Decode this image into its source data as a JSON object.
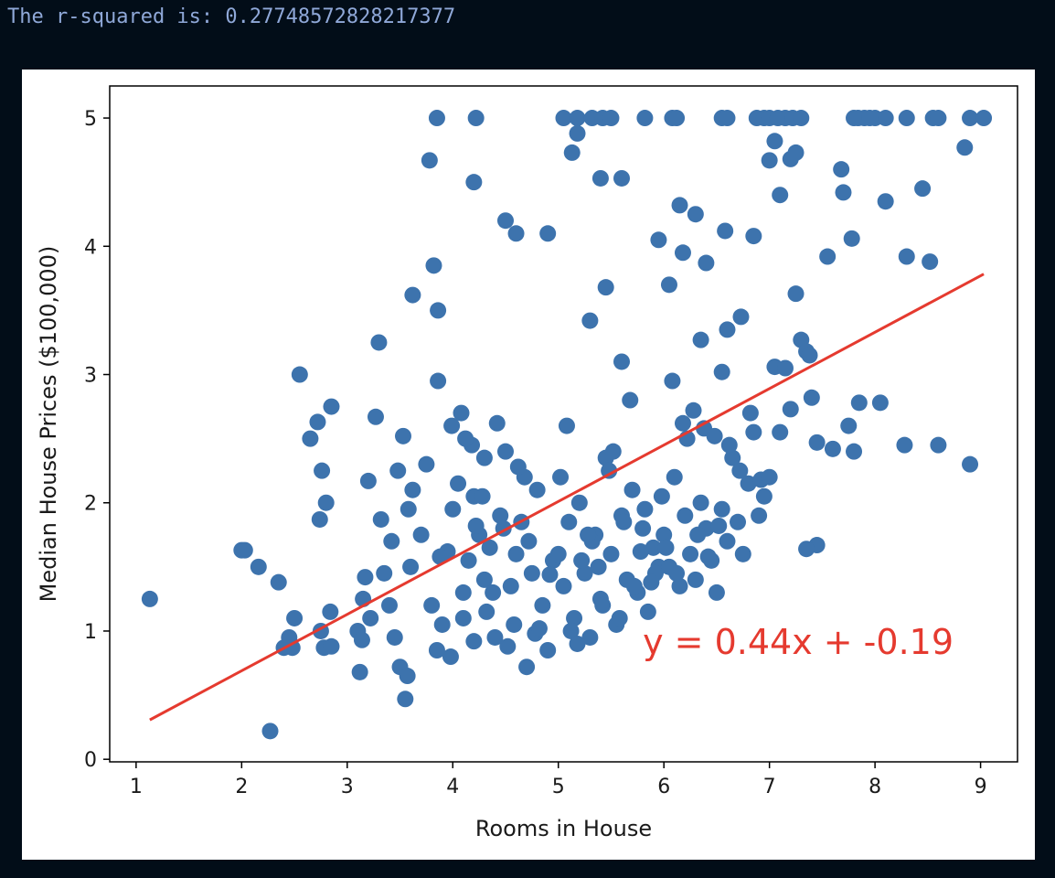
{
  "output": {
    "text": "The r-squared is: 0.27748572828217377"
  },
  "colors": {
    "background": "#020d18",
    "output_text": "#8fa8d8",
    "points": "#3d73ad",
    "regression": "#e53a2f"
  },
  "chart_data": {
    "type": "scatter",
    "title": "",
    "xlabel": "Rooms in House",
    "ylabel": "Median House Prices ($100,000)",
    "xlim": [
      0.75,
      9.35
    ],
    "ylim": [
      -0.02,
      5.25
    ],
    "xticks": [
      1,
      2,
      3,
      4,
      5,
      6,
      7,
      8,
      9
    ],
    "yticks": [
      0,
      1,
      2,
      3,
      4,
      5
    ],
    "grid": false,
    "legend": "none",
    "regression_line": {
      "slope": 0.44,
      "intercept": -0.19,
      "x_range": [
        1.13,
        9.03
      ]
    },
    "annotation": {
      "text": "y = 0.44x + -0.19",
      "x": 5.8,
      "y": 0.82
    },
    "series": [
      {
        "x": [
          1.13,
          2.0,
          2.03,
          2.16,
          2.35,
          2.27,
          2.4,
          2.45,
          2.5,
          2.48,
          2.55,
          2.65,
          2.72,
          2.74,
          2.76,
          2.8,
          2.84,
          2.85,
          2.75,
          2.78,
          2.85,
          3.1,
          3.12,
          3.15,
          3.2,
          3.27,
          3.3,
          3.32,
          3.35,
          3.4,
          3.45,
          3.5,
          3.55,
          3.6,
          3.62,
          3.7,
          3.75,
          3.8,
          3.85,
          3.9,
          3.95,
          3.57,
          3.53,
          3.58,
          3.48,
          3.42,
          3.22,
          3.14,
          3.17,
          3.86,
          3.99,
          4.05,
          4.1,
          4.15,
          4.2,
          4.25,
          4.3,
          4.35,
          4.4,
          4.45,
          4.5,
          4.55,
          4.6,
          4.65,
          4.7,
          4.75,
          4.8,
          4.85,
          4.9,
          4.95,
          4.0,
          4.1,
          4.2,
          4.3,
          4.08,
          4.18,
          4.28,
          4.38,
          4.48,
          4.58,
          4.68,
          4.78,
          3.88,
          3.98,
          4.12,
          4.22,
          4.32,
          4.42,
          4.52,
          4.62,
          4.72,
          4.82,
          4.92,
          5.0,
          5.05,
          5.1,
          5.15,
          5.2,
          5.25,
          5.3,
          5.35,
          5.4,
          5.45,
          5.5,
          5.55,
          5.6,
          5.65,
          5.7,
          5.75,
          5.8,
          5.85,
          5.9,
          5.95,
          5.02,
          5.12,
          5.22,
          5.32,
          5.42,
          5.52,
          5.62,
          5.72,
          5.82,
          5.92,
          5.08,
          5.18,
          5.28,
          5.38,
          5.48,
          5.58,
          5.68,
          5.78,
          5.88,
          5.98,
          6.0,
          6.05,
          6.1,
          6.15,
          6.2,
          6.25,
          6.3,
          6.35,
          6.4,
          6.45,
          6.5,
          6.55,
          6.6,
          6.65,
          6.7,
          6.75,
          6.8,
          6.85,
          6.9,
          6.95,
          6.02,
          6.12,
          6.22,
          6.32,
          6.42,
          6.52,
          6.62,
          6.72,
          6.82,
          6.92,
          6.08,
          6.18,
          6.28,
          6.38,
          6.48,
          3.85,
          4.22,
          5.05,
          5.18,
          5.32,
          5.42,
          5.5,
          5.82,
          6.08,
          6.12,
          6.55,
          6.6,
          6.88,
          6.95,
          7.0,
          7.08,
          7.15,
          7.22,
          7.3,
          7.9,
          8.0,
          8.1,
          8.3,
          8.55,
          8.6,
          8.9,
          9.03,
          7.8,
          7.84,
          7.95,
          3.78,
          4.2,
          5.13,
          5.18,
          5.4,
          5.6,
          6.15,
          6.3,
          6.58,
          7.0,
          7.05,
          7.2,
          7.25,
          7.1,
          7.68,
          7.7,
          7.78,
          8.1,
          8.45,
          8.85,
          3.62,
          3.82,
          3.86,
          4.5,
          4.6,
          4.9,
          5.3,
          5.45,
          5.95,
          6.05,
          6.18,
          6.4,
          6.6,
          6.73,
          6.85,
          6.55,
          6.35,
          5.6,
          7.0,
          7.1,
          7.2,
          7.3,
          7.35,
          7.4,
          7.45,
          7.6,
          7.75,
          7.85,
          8.05,
          8.28,
          8.6,
          8.9,
          7.05,
          7.15,
          7.25,
          7.55,
          7.8,
          8.52,
          8.3,
          7.38,
          7.45,
          7.35
        ],
        "y": [
          1.25,
          1.63,
          1.63,
          1.5,
          1.38,
          0.22,
          0.87,
          0.95,
          1.1,
          0.87,
          3.0,
          2.5,
          2.63,
          1.87,
          2.25,
          2.0,
          1.15,
          2.75,
          1.0,
          0.87,
          0.88,
          1.0,
          0.68,
          1.25,
          2.17,
          2.67,
          3.25,
          1.87,
          1.45,
          1.2,
          0.95,
          0.72,
          0.47,
          1.5,
          2.1,
          1.75,
          2.3,
          1.2,
          0.85,
          1.05,
          1.62,
          0.65,
          2.52,
          1.95,
          2.25,
          1.7,
          1.1,
          0.93,
          1.42,
          2.95,
          2.6,
          2.15,
          1.3,
          1.55,
          2.05,
          1.75,
          2.35,
          1.65,
          0.95,
          1.9,
          2.4,
          1.35,
          1.6,
          1.85,
          0.72,
          1.45,
          2.1,
          1.2,
          0.85,
          1.55,
          1.95,
          1.1,
          0.92,
          1.4,
          2.7,
          2.45,
          2.05,
          1.3,
          1.8,
          1.05,
          2.2,
          0.98,
          1.58,
          0.8,
          2.5,
          1.82,
          1.15,
          2.62,
          0.88,
          2.28,
          1.7,
          1.02,
          1.44,
          1.6,
          1.35,
          1.85,
          1.1,
          2.0,
          1.45,
          0.95,
          1.75,
          1.25,
          2.35,
          1.6,
          1.05,
          1.9,
          1.4,
          2.1,
          1.3,
          1.8,
          1.15,
          1.65,
          1.5,
          2.2,
          1.0,
          1.55,
          1.7,
          1.2,
          2.4,
          1.85,
          1.35,
          1.95,
          1.45,
          2.6,
          0.9,
          1.75,
          1.5,
          2.25,
          1.1,
          2.8,
          1.62,
          1.38,
          2.05,
          1.75,
          1.5,
          2.2,
          1.35,
          1.9,
          1.6,
          1.4,
          2.0,
          1.8,
          1.55,
          1.3,
          1.95,
          1.7,
          2.35,
          1.85,
          1.6,
          2.15,
          2.55,
          1.9,
          2.05,
          1.65,
          1.45,
          2.5,
          1.75,
          1.58,
          1.82,
          2.45,
          2.25,
          2.7,
          2.18,
          2.95,
          2.62,
          2.72,
          2.58,
          2.52,
          5.0,
          5.0,
          5.0,
          5.0,
          5.0,
          5.0,
          5.0,
          5.0,
          5.0,
          5.0,
          5.0,
          5.0,
          5.0,
          5.0,
          5.0,
          5.0,
          5.0,
          5.0,
          5.0,
          5.0,
          5.0,
          5.0,
          5.0,
          5.0,
          5.0,
          5.0,
          5.0,
          5.0,
          5.0,
          5.0,
          4.67,
          4.5,
          4.73,
          4.88,
          4.53,
          4.53,
          4.32,
          4.25,
          4.12,
          4.67,
          4.82,
          4.68,
          4.73,
          4.4,
          4.6,
          4.42,
          4.06,
          4.35,
          4.45,
          4.77,
          3.62,
          3.85,
          3.5,
          4.2,
          4.1,
          4.1,
          3.42,
          3.68,
          4.05,
          3.7,
          3.95,
          3.87,
          3.35,
          3.45,
          4.08,
          3.02,
          3.27,
          3.1,
          2.2,
          2.55,
          2.73,
          3.27,
          3.18,
          2.82,
          2.47,
          2.42,
          2.6,
          2.78,
          2.78,
          2.45,
          2.45,
          2.3,
          3.06,
          3.05,
          3.63,
          3.92,
          2.4,
          3.88,
          3.92,
          3.15,
          1.67,
          1.64
        ]
      }
    ]
  }
}
